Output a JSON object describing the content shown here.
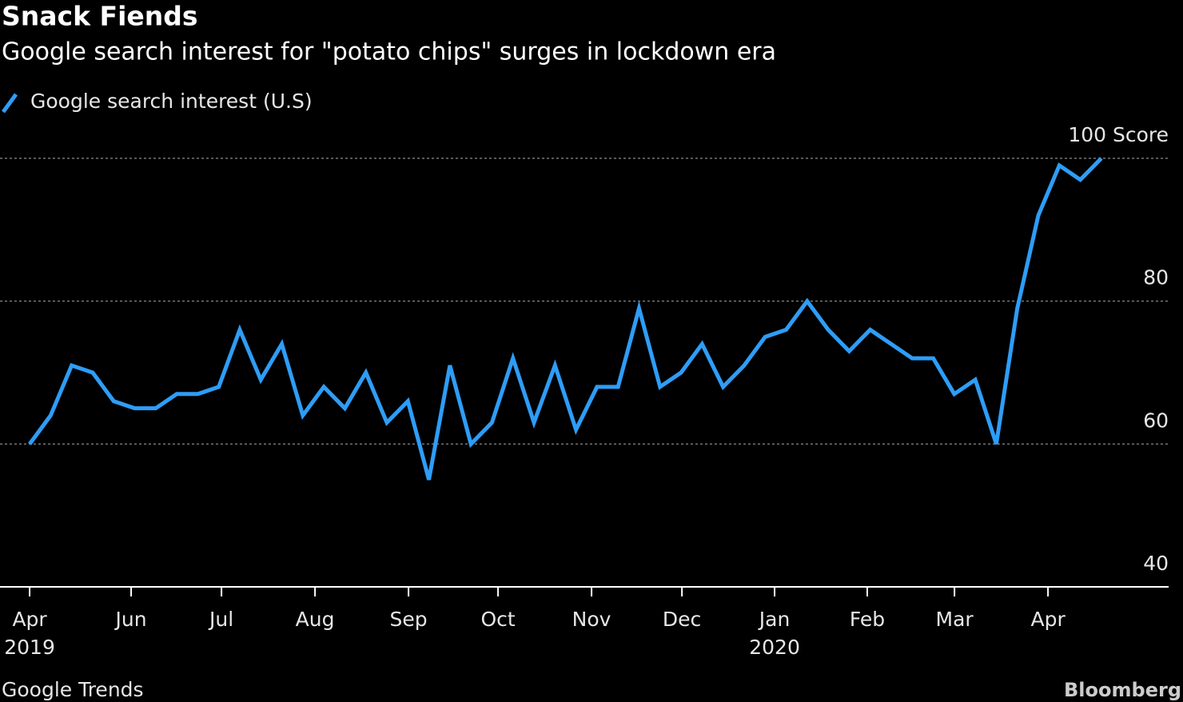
{
  "chart_data": {
    "type": "line",
    "title": "Snack Fiends",
    "subtitle": "Google search interest for \"potato chips\" surges in lockdown era",
    "source": "Google Trends",
    "brand": "Bloomberg",
    "x": [
      0,
      1,
      2,
      3,
      4,
      5,
      6,
      7,
      8,
      9,
      10,
      11,
      12,
      13,
      14,
      15,
      16,
      17,
      18,
      19,
      20,
      21,
      22,
      23,
      24,
      25,
      26,
      27,
      28,
      29,
      30,
      31,
      32,
      33,
      34,
      35,
      36,
      37,
      38,
      39,
      40,
      41,
      42,
      43,
      44,
      45,
      46,
      47,
      48,
      49,
      50,
      51
    ],
    "series": [
      {
        "name": "Google search interest (U.S)",
        "color": "#2e9df7",
        "values": [
          60,
          64,
          71,
          70,
          66,
          65,
          65,
          67,
          67,
          68,
          76,
          69,
          74,
          64,
          68,
          65,
          70,
          63,
          66,
          55,
          71,
          60,
          63,
          72,
          63,
          71,
          62,
          68,
          68,
          79,
          68,
          70,
          74,
          68,
          71,
          75,
          76,
          80,
          76,
          73,
          76,
          74,
          72,
          72,
          67,
          69,
          60,
          79,
          92,
          99,
          97,
          100
        ]
      }
    ],
    "xlim": [
      -1.41,
      54.2
    ],
    "xticks": [
      {
        "value": 0,
        "label": "Apr"
      },
      {
        "value": 4.83,
        "label": "Jun"
      },
      {
        "value": 9.13,
        "label": "Jul"
      },
      {
        "value": 13.58,
        "label": "Aug"
      },
      {
        "value": 18.03,
        "label": "Sep"
      },
      {
        "value": 22.29,
        "label": "Oct"
      },
      {
        "value": 26.74,
        "label": "Nov"
      },
      {
        "value": 31.04,
        "label": "Dec"
      },
      {
        "value": 35.45,
        "label": "Jan"
      },
      {
        "value": 39.86,
        "label": "Feb"
      },
      {
        "value": 44.01,
        "label": "Mar"
      },
      {
        "value": 48.46,
        "label": "Apr"
      }
    ],
    "x_year_labels": [
      {
        "value": 0,
        "label": "2019"
      },
      {
        "value": 35.45,
        "label": "2020"
      }
    ],
    "ylim": [
      40,
      100
    ],
    "yticks": [
      40,
      60,
      80,
      {
        "value": 100,
        "label": "100  Score"
      }
    ],
    "grid": true
  }
}
